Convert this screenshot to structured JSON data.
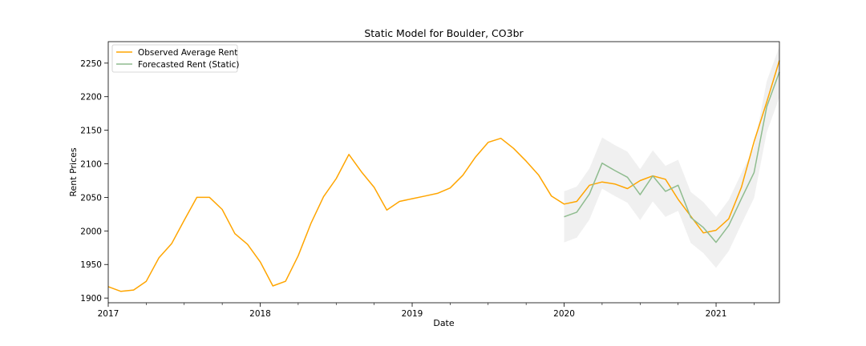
{
  "chart_data": {
    "type": "line",
    "title": "Static Model for Boulder, CO3br",
    "xlabel": "Date",
    "ylabel": "Rent Prices",
    "xlim": [
      "2017-01",
      "2021-06"
    ],
    "ylim": [
      1893,
      2282
    ],
    "x_ticks": [
      "2017",
      "2018",
      "2019",
      "2020",
      "2021"
    ],
    "y_ticks": [
      1900,
      1950,
      2000,
      2050,
      2100,
      2150,
      2200,
      2250
    ],
    "grid": false,
    "legend": {
      "placement": "top-left",
      "entries": [
        "Observed Average Rent",
        "Forecasted Rent (Static)"
      ]
    },
    "colors": {
      "observed": "#FFA500",
      "forecast": "#8fbc8f",
      "band": "#d3d3d3"
    },
    "observed": {
      "name": "Observed Average Rent",
      "x": [
        "2017-01",
        "2017-02",
        "2017-03",
        "2017-04",
        "2017-05",
        "2017-06",
        "2017-07",
        "2017-08",
        "2017-09",
        "2017-10",
        "2017-11",
        "2017-12",
        "2018-01",
        "2018-02",
        "2018-03",
        "2018-04",
        "2018-05",
        "2018-06",
        "2018-07",
        "2018-08",
        "2018-09",
        "2018-10",
        "2018-11",
        "2018-12",
        "2019-01",
        "2019-02",
        "2019-03",
        "2019-04",
        "2019-05",
        "2019-06",
        "2019-07",
        "2019-08",
        "2019-09",
        "2019-10",
        "2019-11",
        "2019-12",
        "2020-01",
        "2020-02",
        "2020-03",
        "2020-04",
        "2020-05",
        "2020-06",
        "2020-07",
        "2020-08",
        "2020-09",
        "2020-10",
        "2020-11",
        "2020-12",
        "2021-01",
        "2021-02",
        "2021-03",
        "2021-04",
        "2021-05",
        "2021-06"
      ],
      "y": [
        1917,
        1910,
        1912,
        1925,
        1960,
        1981,
        2016,
        2050,
        2050,
        2032,
        1996,
        1980,
        1954,
        1918,
        1925,
        1963,
        2011,
        2051,
        2078,
        2114,
        2088,
        2065,
        2031,
        2044,
        2048,
        2052,
        2056,
        2064,
        2083,
        2110,
        2132,
        2138,
        2123,
        2104,
        2083,
        2052,
        2040,
        2044,
        2068,
        2073,
        2070,
        2063,
        2075,
        2082,
        2077,
        2047,
        2022,
        1997,
        2001,
        2018,
        2065,
        2133,
        2192,
        2254
      ]
    },
    "forecast": {
      "name": "Forecasted Rent (Static)",
      "x": [
        "2020-01",
        "2020-02",
        "2020-03",
        "2020-04",
        "2020-05",
        "2020-06",
        "2020-07",
        "2020-08",
        "2020-09",
        "2020-10",
        "2020-11",
        "2020-12",
        "2021-01",
        "2021-02",
        "2021-03",
        "2021-04",
        "2021-05",
        "2021-06"
      ],
      "y": [
        2021,
        2028,
        2055,
        2101,
        2090,
        2080,
        2054,
        2082,
        2059,
        2068,
        2020,
        2005,
        1983,
        2008,
        2048,
        2087,
        2185,
        2237
      ],
      "lower": [
        1983,
        1990,
        2017,
        2063,
        2052,
        2042,
        2016,
        2044,
        2021,
        2030,
        1982,
        1967,
        1945,
        1970,
        2010,
        2049,
        2147,
        2199
      ],
      "upper": [
        2059,
        2066,
        2093,
        2139,
        2128,
        2118,
        2092,
        2120,
        2097,
        2106,
        2058,
        2043,
        2021,
        2046,
        2086,
        2125,
        2223,
        2275
      ]
    }
  }
}
